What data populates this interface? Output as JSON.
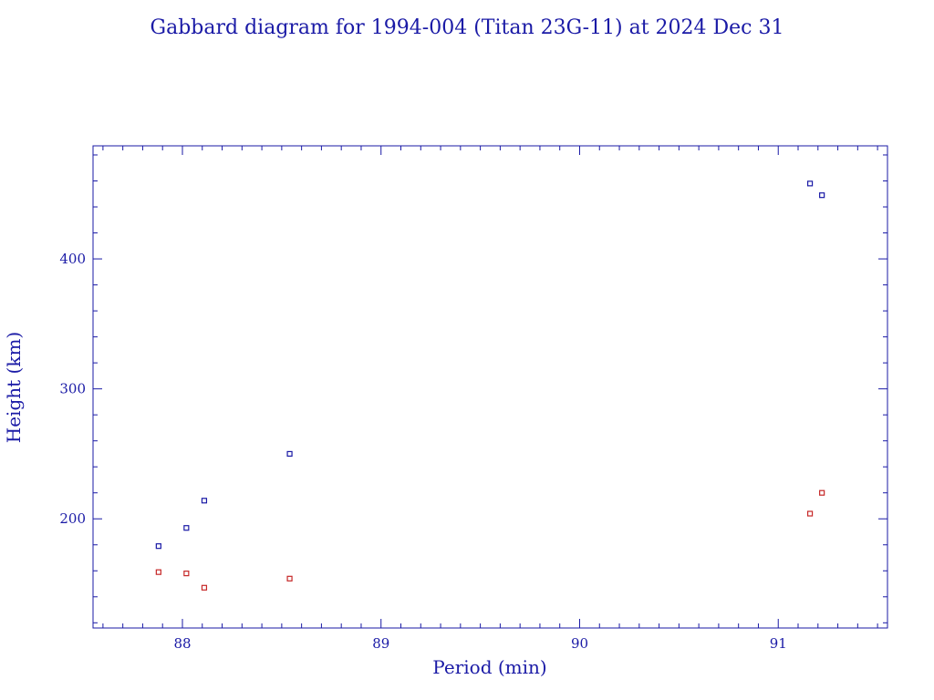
{
  "chart_data": {
    "type": "scatter",
    "title": "Gabbard diagram for 1994-004 (Titan 23G-11) at 2024 Dec 31",
    "xlabel": "Period (min)",
    "ylabel": "Height (km)",
    "xlim": [
      87.55,
      91.55
    ],
    "ylim": [
      116,
      487
    ],
    "x_ticks": [
      88,
      89,
      90,
      91
    ],
    "x_tick_labels": [
      "88",
      "89",
      "90",
      "91"
    ],
    "y_ticks": [
      200,
      300,
      400
    ],
    "y_tick_labels": [
      "200",
      "300",
      "400"
    ],
    "grid": false,
    "colors": {
      "axis": "#1a1aa6",
      "text": "#1a1aa6",
      "apogee": "#1a1aa6",
      "perigee": "#c62828"
    },
    "series": [
      {
        "color": "#1a1aa6",
        "points": [
          {
            "x": 87.88,
            "y": 179
          },
          {
            "x": 88.02,
            "y": 193
          },
          {
            "x": 88.11,
            "y": 214
          },
          {
            "x": 88.54,
            "y": 250
          },
          {
            "x": 91.16,
            "y": 458
          },
          {
            "x": 91.22,
            "y": 449
          }
        ]
      },
      {
        "color": "#c62828",
        "points": [
          {
            "x": 87.88,
            "y": 159
          },
          {
            "x": 88.02,
            "y": 158
          },
          {
            "x": 88.11,
            "y": 147
          },
          {
            "x": 88.54,
            "y": 154
          },
          {
            "x": 91.16,
            "y": 204
          },
          {
            "x": 91.22,
            "y": 220
          }
        ]
      }
    ]
  }
}
